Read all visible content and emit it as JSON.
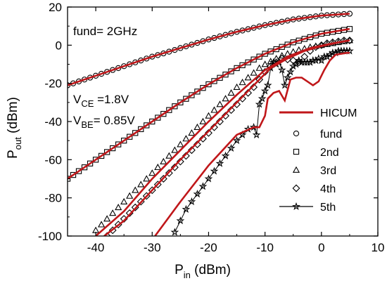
{
  "chart_data": {
    "type": "line",
    "title": "",
    "xlabel_main": "P",
    "xlabel_sub": "in",
    "xlabel_unit": " (dBm)",
    "ylabel_main": "P",
    "ylabel_sub": "out",
    "ylabel_unit": " (dBm)",
    "xlim": [
      -45,
      10
    ],
    "ylim": [
      -100,
      20
    ],
    "xticks": [
      -40,
      -30,
      -20,
      -10,
      0,
      10
    ],
    "yticks": [
      -100,
      -80,
      -60,
      -40,
      -20,
      0,
      20
    ],
    "annotations": {
      "fund": "fund= 2GHz",
      "vce_main": "V",
      "vce_sub": "CE",
      "vce_val": " =1.8V",
      "vbe_main": "V",
      "vbe_sub": "BE",
      "vbe_val": "= 0.85V"
    },
    "legend_position": "bottom-right",
    "model": {
      "name": "HICUM",
      "color": "#c0171a",
      "curves": [
        {
          "harmonic": "fund",
          "x": [
            -45,
            -40,
            -35,
            -30,
            -25,
            -20,
            -15,
            -10,
            -5,
            0,
            5
          ],
          "y": [
            -21,
            -16,
            -11,
            -6,
            -1.5,
            3,
            7,
            10.5,
            13.5,
            15.5,
            16.5
          ]
        },
        {
          "harmonic": "2nd",
          "x": [
            -45,
            -40,
            -35,
            -30,
            -25,
            -20,
            -15,
            -10,
            -5,
            0,
            5
          ],
          "y": [
            -70,
            -60,
            -50,
            -40,
            -30,
            -20.5,
            -12,
            -4.5,
            1.5,
            6,
            8.5
          ]
        },
        {
          "harmonic": "3rd",
          "x": [
            -40,
            -35,
            -30,
            -25,
            -20,
            -15,
            -10,
            -6,
            -2,
            2,
            5
          ],
          "y": [
            -100,
            -87,
            -70,
            -55,
            -40,
            -26,
            -13,
            -6,
            -1.5,
            1,
            2.5
          ]
        },
        {
          "harmonic": "4th",
          "x": [
            -38.5,
            -35,
            -30,
            -25,
            -20,
            -15,
            -12,
            -9,
            -6,
            -3,
            0,
            3,
            5
          ],
          "y": [
            -100,
            -92,
            -76,
            -60,
            -45,
            -30,
            -21,
            -12,
            -7,
            -3,
            -0.5,
            1.5,
            2.5
          ]
        },
        {
          "harmonic": "5th",
          "x": [
            -29.5,
            -25,
            -20,
            -15,
            -12,
            -11,
            -10,
            -9.5,
            -8.5,
            -7.5,
            -6.5,
            -5.5,
            -4.5,
            -3.5,
            -2.5,
            -1.5,
            -0.5,
            0.5,
            1.5,
            2.5,
            3.5,
            4.5,
            5
          ],
          "y": [
            -100,
            -82,
            -63,
            -47,
            -43,
            -43,
            -37,
            -28,
            -25,
            -24,
            -29,
            -18,
            -17,
            -17,
            -19,
            -21,
            -19,
            -13,
            -8,
            -5,
            -4.5,
            -4,
            -4
          ]
        }
      ]
    },
    "series": [
      {
        "name": "fund",
        "marker": "circle",
        "x": [
          -45,
          -44,
          -43,
          -42,
          -41,
          -40,
          -39,
          -38,
          -37,
          -36,
          -35,
          -34,
          -33,
          -32,
          -31,
          -30,
          -29,
          -28,
          -27,
          -26,
          -25,
          -24,
          -23,
          -22,
          -21,
          -20,
          -19,
          -18,
          -17,
          -16,
          -15,
          -14,
          -13,
          -12,
          -11,
          -10,
          -9,
          -8,
          -7,
          -6,
          -5,
          -4,
          -3,
          -2,
          -1,
          0,
          1,
          2,
          3,
          4,
          5
        ],
        "y": [
          -21,
          -20,
          -19,
          -18,
          -17,
          -16,
          -15,
          -14,
          -13,
          -12,
          -11,
          -10,
          -9,
          -8,
          -7,
          -6,
          -5.2,
          -4.3,
          -3.4,
          -2.5,
          -1.5,
          -0.6,
          0.3,
          1.2,
          2.1,
          3,
          3.8,
          4.6,
          5.4,
          6.2,
          7,
          7.7,
          8.4,
          9.1,
          9.8,
          10.5,
          11.1,
          11.7,
          12.3,
          12.9,
          13.5,
          13.9,
          14.3,
          14.7,
          15.1,
          15.5,
          15.7,
          15.9,
          16.1,
          16.3,
          16.5
        ]
      },
      {
        "name": "2nd",
        "marker": "square",
        "x": [
          -45,
          -44,
          -43,
          -42,
          -41,
          -40,
          -39,
          -38,
          -37,
          -36,
          -35,
          -34,
          -33,
          -32,
          -31,
          -30,
          -29,
          -28,
          -27,
          -26,
          -25,
          -24,
          -23,
          -22,
          -21,
          -20,
          -19,
          -18,
          -17,
          -16,
          -15,
          -14,
          -13,
          -12,
          -11,
          -10,
          -9,
          -8,
          -7,
          -6,
          -5,
          -4,
          -3,
          -2,
          -1,
          0,
          1,
          2,
          3,
          4,
          5
        ],
        "y": [
          -70,
          -68,
          -66,
          -64,
          -62,
          -60,
          -58,
          -56,
          -54,
          -52,
          -50,
          -48,
          -46,
          -44,
          -42,
          -40,
          -38,
          -36,
          -34,
          -32,
          -30,
          -28.1,
          -26.2,
          -24.3,
          -22.4,
          -20.5,
          -18.8,
          -17.1,
          -15.4,
          -13.7,
          -12,
          -10.5,
          -9,
          -7.5,
          -6,
          -4.5,
          -3.3,
          -2.1,
          -0.9,
          0.3,
          1.5,
          2.4,
          3.3,
          4.2,
          5.1,
          6,
          6.5,
          7,
          7.5,
          8,
          8.5
        ]
      },
      {
        "name": "3rd",
        "marker": "triangle",
        "x": [
          -40,
          -39,
          -38,
          -37,
          -36,
          -35,
          -34,
          -33,
          -32,
          -31,
          -30,
          -29,
          -28,
          -27,
          -26,
          -25,
          -24,
          -23,
          -22,
          -21,
          -20,
          -19,
          -18,
          -17,
          -16,
          -15,
          -14,
          -13,
          -12,
          -11,
          -10,
          -9,
          -8,
          -7,
          -6,
          -5,
          -4,
          -3,
          -2,
          -1,
          0,
          1,
          2,
          3,
          4,
          5
        ],
        "y": [
          -97,
          -94,
          -91,
          -88,
          -85,
          -82,
          -79,
          -76,
          -73,
          -70,
          -67,
          -64,
          -61,
          -58,
          -55,
          -52,
          -49,
          -46,
          -43,
          -40,
          -37,
          -34,
          -31,
          -28,
          -25,
          -22,
          -19.5,
          -17,
          -14.5,
          -12,
          -10,
          -8.5,
          -7,
          -5.5,
          -4.5,
          -3.5,
          -2.5,
          -1.8,
          -1,
          -0.5,
          0,
          0.5,
          1,
          1.5,
          2,
          2.5
        ]
      },
      {
        "name": "4th",
        "marker": "diamond",
        "x": [
          -38,
          -37,
          -36,
          -35,
          -34,
          -33,
          -32,
          -31,
          -30,
          -29,
          -28,
          -27,
          -26,
          -25,
          -24,
          -23,
          -22,
          -21,
          -20,
          -19,
          -18,
          -17,
          -16,
          -15,
          -14,
          -13,
          -12,
          -11,
          -10,
          -9,
          -8,
          -7,
          -6,
          -5,
          -4,
          -3,
          -2,
          -1,
          0,
          1,
          2,
          3,
          4,
          5
        ],
        "y": [
          -100,
          -97,
          -94,
          -91,
          -88,
          -85,
          -82,
          -79,
          -76,
          -73,
          -70,
          -67,
          -64,
          -61,
          -58,
          -55,
          -52,
          -49,
          -46,
          -43,
          -40,
          -37,
          -34,
          -31,
          -28,
          -25,
          -22,
          -18,
          -14,
          -11,
          -9,
          -7,
          -7.5,
          -8,
          -9,
          -6,
          -3,
          -1,
          0,
          1,
          1.5,
          2,
          2.5,
          2.5
        ]
      },
      {
        "name": "5th",
        "marker": "star",
        "x": [
          -26,
          -25,
          -24,
          -23,
          -22,
          -21,
          -20,
          -19,
          -18,
          -17,
          -16,
          -15,
          -14,
          -13,
          -12,
          -11.5,
          -11,
          -10.5,
          -10,
          -9.5,
          -9,
          -8.5,
          -8,
          -7.5,
          -7,
          -6.5,
          -6,
          -5.5,
          -5,
          -4.5,
          -4,
          -3.5,
          -3,
          -2.5,
          -2,
          -1.5,
          -1,
          -0.5,
          0,
          0.5,
          1,
          1.5,
          2,
          2.5,
          3,
          3.5,
          4,
          4.5,
          5
        ],
        "y": [
          -98,
          -92,
          -86,
          -82,
          -78,
          -74,
          -70,
          -66,
          -62,
          -58,
          -54,
          -50,
          -47,
          -44,
          -43,
          -47,
          -31,
          -28,
          -24,
          -21,
          -12,
          -9,
          -10,
          -9,
          -13,
          -21,
          -17,
          -14,
          -11,
          -10,
          -8,
          -9,
          -9,
          -9,
          -9,
          -8,
          -8,
          -7,
          -8,
          -6,
          -6,
          -5,
          -4,
          -4,
          -3,
          -3,
          -3,
          -3,
          -3
        ]
      }
    ]
  }
}
